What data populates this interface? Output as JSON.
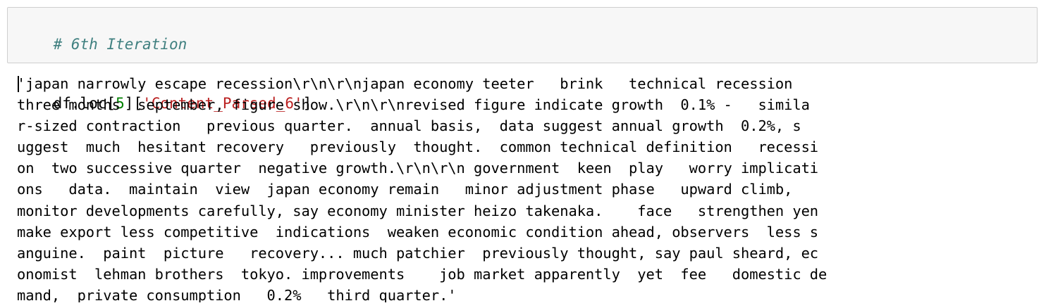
{
  "input_cell": {
    "comment": "# 6th Iteration",
    "code": {
      "obj": "df.loc[",
      "index": "5",
      "mid": "][",
      "key": "'Content_Parsed_6'",
      "end": "]"
    }
  },
  "output": {
    "text": "'japan narrowly escape recession\\r\\n\\r\\njapan economy teeter   brink   technical recession\nthree months  september, figure show.\\r\\n\\r\\nrevised figure indicate growth  0.1% -   simila\nr-sized contraction   previous quarter.  annual basis,  data suggest annual growth  0.2%, s\nuggest  much  hesitant recovery   previously  thought.  common technical definition   recessi\non  two successive quarter  negative growth.\\r\\n\\r\\n government  keen  play   worry implicati\nons   data.  maintain  view  japan economy remain   minor adjustment phase   upward climb,\nmonitor developments carefully, say economy minister heizo takenaka.    face   strengthen yen\nmake export less competitive  indications  weaken economic condition ahead, observers  less s\nanguine.  paint  picture   recovery... much patchier  previously thought, say paul sheard, ec\nonomist  lehman brothers  tokyo. improvements    job market apparently  yet  fee   domestic de\nmand,  private consumption   0.2%   third quarter.'"
  },
  "colors": {
    "cell_background": "#f7f7f7",
    "cell_border": "#cfcfcf",
    "comment": "#408080",
    "number": "#008000",
    "string": "#ba2121",
    "text": "#000000"
  }
}
